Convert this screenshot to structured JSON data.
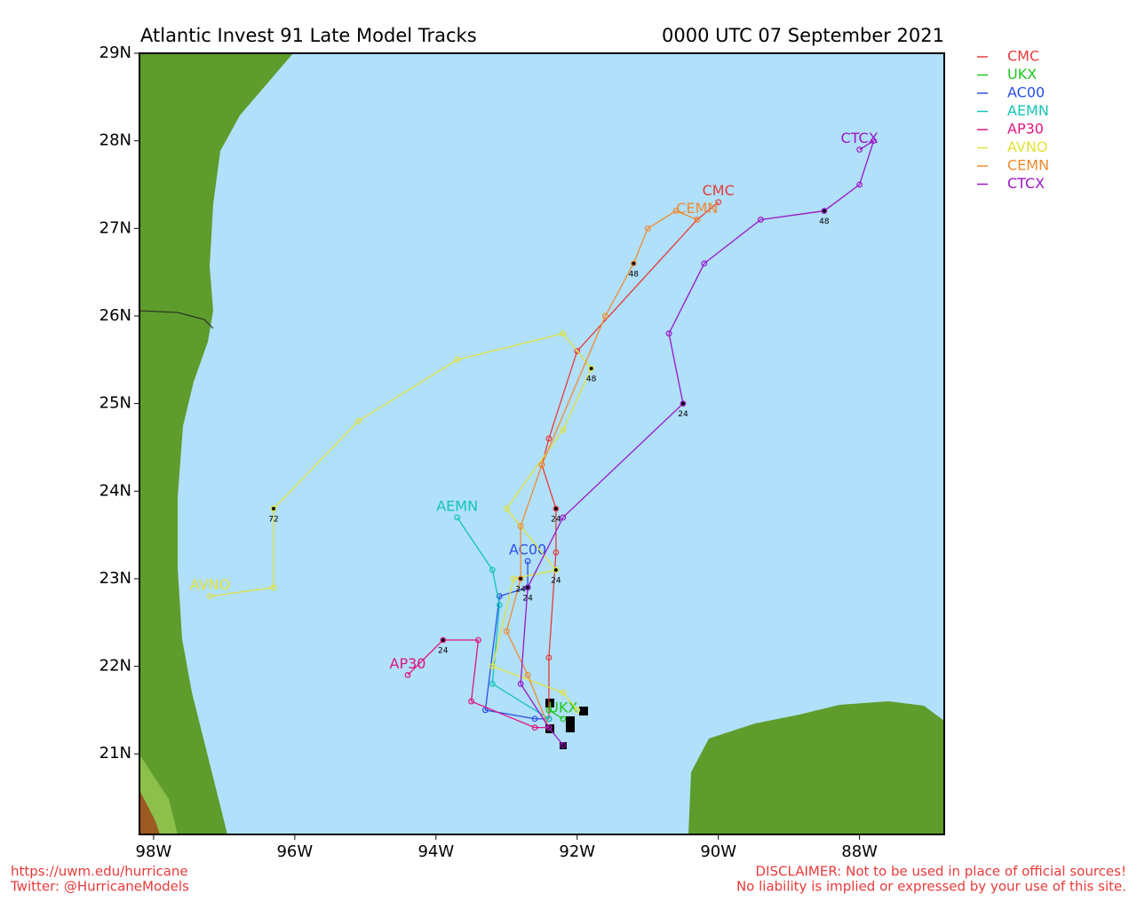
{
  "chart_data": {
    "type": "track-map",
    "title": "Atlantic Invest 91 Late Model Tracks",
    "subtitle": "0000 UTC 07 September 2021",
    "xlim": [
      -98.2,
      -86.8
    ],
    "ylim": [
      20.08,
      29
    ],
    "xticks": [
      {
        "value": -98,
        "label": "98W"
      },
      {
        "value": -96,
        "label": "96W"
      },
      {
        "value": -94,
        "label": "94W"
      },
      {
        "value": -92,
        "label": "92W"
      },
      {
        "value": -90,
        "label": "90W"
      },
      {
        "value": -88,
        "label": "88W"
      }
    ],
    "yticks": [
      {
        "value": 21,
        "label": "21N"
      },
      {
        "value": 22,
        "label": "22N"
      },
      {
        "value": 23,
        "label": "23N"
      },
      {
        "value": 24,
        "label": "24N"
      },
      {
        "value": 25,
        "label": "25N"
      },
      {
        "value": 26,
        "label": "26N"
      },
      {
        "value": 27,
        "label": "27N"
      },
      {
        "value": 28,
        "label": "28N"
      },
      {
        "value": 29,
        "label": "29N"
      }
    ],
    "series": [
      {
        "name": "CMC",
        "color": "#e83a3a",
        "x": [
          -92.4,
          -92.4,
          -92.3,
          -92.3,
          -92.5,
          -92.4,
          -92.0,
          -90.3,
          -90.0
        ],
        "values": [
          21.4,
          22.1,
          23.3,
          23.8,
          24.3,
          24.6,
          25.6,
          27.1,
          27.3
        ]
      },
      {
        "name": "UKX",
        "color": "#1ec81e",
        "x": [
          -92.4,
          -92.2
        ],
        "values": [
          21.5,
          21.4
        ]
      },
      {
        "name": "AC00",
        "color": "#2a4ee8",
        "x": [
          -92.4,
          -92.6,
          -93.3,
          -93.1,
          -92.7,
          -92.7
        ],
        "values": [
          21.4,
          21.4,
          21.5,
          22.8,
          22.9,
          23.2
        ]
      },
      {
        "name": "AEMN",
        "color": "#14c4b8",
        "x": [
          -92.4,
          -93.2,
          -93.1,
          -93.2,
          -93.7
        ],
        "values": [
          21.4,
          21.8,
          22.7,
          23.1,
          23.7
        ]
      },
      {
        "name": "AP30",
        "color": "#e0157f",
        "x": [
          -92.4,
          -92.6,
          -93.5,
          -93.4,
          -93.9,
          -94.4
        ],
        "values": [
          21.3,
          21.3,
          21.6,
          22.3,
          22.3,
          21.9
        ]
      },
      {
        "name": "AVNO",
        "color": "#e2e23a",
        "x": [
          -92.0,
          -92.2,
          -93.2,
          -92.9,
          -92.3,
          -93.0,
          -92.2,
          -91.8,
          -92.2,
          -93.7,
          -95.1,
          -96.3,
          -96.3,
          -97.2
        ],
        "values": [
          21.5,
          21.7,
          22.0,
          23.0,
          23.1,
          23.8,
          24.7,
          25.4,
          25.8,
          25.5,
          24.8,
          23.8,
          22.9,
          22.8
        ]
      },
      {
        "name": "CEMN",
        "color": "#f08a30",
        "x": [
          -92.4,
          -92.7,
          -93.0,
          -92.8,
          -92.8,
          -92.5,
          -91.6,
          -91.2,
          -91.0,
          -90.6,
          -90.3
        ],
        "values": [
          21.3,
          21.9,
          22.4,
          23.0,
          23.6,
          24.3,
          26.0,
          26.6,
          27.0,
          27.2,
          27.1
        ]
      },
      {
        "name": "CTCX",
        "color": "#9a16c8",
        "x": [
          -92.2,
          -92.4,
          -92.8,
          -92.7,
          -92.2,
          -90.5,
          -90.7,
          -90.2,
          -89.4,
          -88.5,
          -88.0,
          -87.8,
          -88.0
        ],
        "values": [
          21.1,
          21.3,
          21.8,
          22.9,
          23.7,
          25.0,
          25.8,
          26.6,
          27.1,
          27.2,
          27.5,
          28.0,
          27.9
        ]
      }
    ],
    "annotations": [
      {
        "text": "24",
        "x": -92.3,
        "y": 23.8
      },
      {
        "text": "24",
        "x": -92.3,
        "y": 23.1
      },
      {
        "text": "48",
        "x": -91.8,
        "y": 25.4
      },
      {
        "text": "72",
        "x": -96.3,
        "y": 23.8
      },
      {
        "text": "24",
        "x": -92.8,
        "y": 23.0
      },
      {
        "text": "24",
        "x": -92.7,
        "y": 22.9
      },
      {
        "text": "48",
        "x": -91.2,
        "y": 26.6
      },
      {
        "text": "24",
        "x": -90.5,
        "y": 25.0
      },
      {
        "text": "48",
        "x": -88.5,
        "y": 27.2
      },
      {
        "text": "24",
        "x": -93.9,
        "y": 22.3
      }
    ]
  },
  "footer": {
    "left": [
      "https://uwm.edu/hurricane",
      "Twitter: @HurricaneModels"
    ],
    "right": [
      "DISCLAIMER: Not to be used in place of official sources!",
      "No liability is implied or expressed by your use of this site."
    ]
  }
}
